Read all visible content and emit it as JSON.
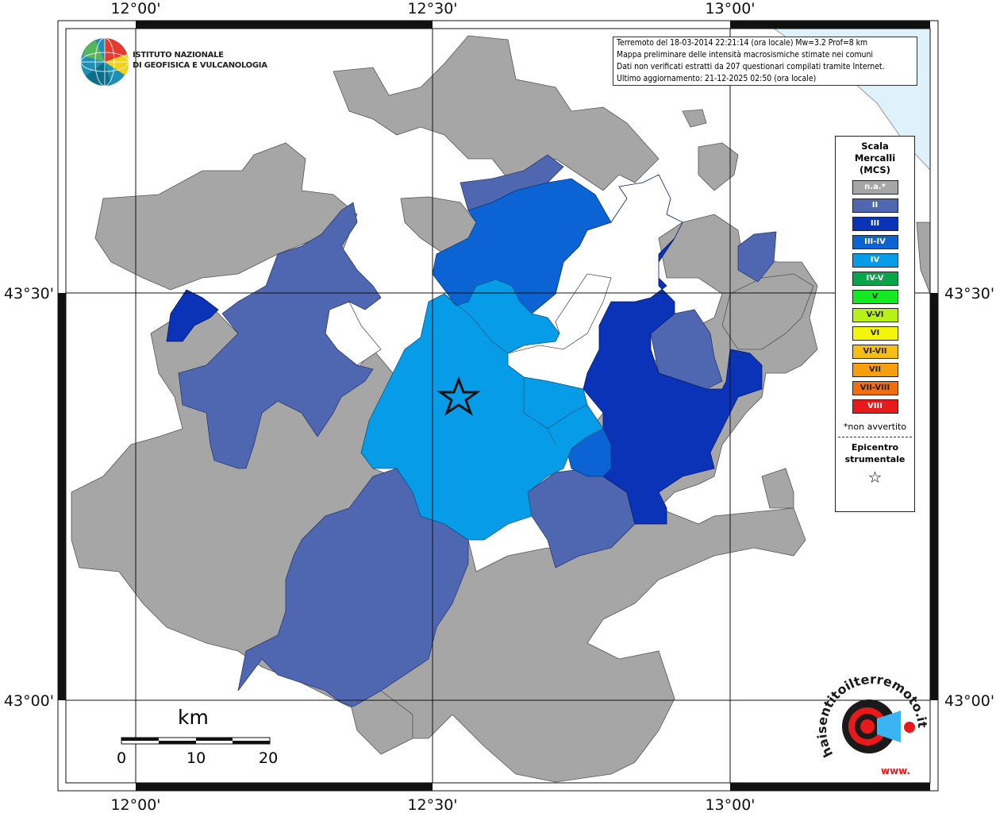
{
  "map": {
    "lon_labels": [
      "12°00'",
      "12°30'",
      "13°00'"
    ],
    "lat_labels": [
      "43°30'",
      "43°00'"
    ]
  },
  "logo": {
    "line1": "ISTITUTO NAZIONALE",
    "line2": "DI GEOFISICA E VULCANOLOGIA"
  },
  "info": {
    "line1": "Terremoto del 18-03-2014 22:21:14 (ora locale) Mw=3.2 Prof=8 km",
    "line2": "Mappa preliminare delle intensità macrosismiche stimate nei comuni",
    "line3": "Dati non verificati estratti da 207 questionari compilati tramite Internet.",
    "line4": "Ultimo aggiornamento: 21-12-2025 02:50 (ora locale)"
  },
  "legend": {
    "title1": "Scala",
    "title2": "Mercalli",
    "title3": "(MCS)",
    "items": [
      {
        "label": "n.a.*",
        "color": "#a6a6a6",
        "text": "#ffffff"
      },
      {
        "label": "II",
        "color": "#4f67b0",
        "text": "#ffffff"
      },
      {
        "label": "III",
        "color": "#0b33b8",
        "text": "#ffffff"
      },
      {
        "label": "III-IV",
        "color": "#0b63d4",
        "text": "#ffffff"
      },
      {
        "label": "IV",
        "color": "#069ce8",
        "text": "#ffffff"
      },
      {
        "label": "IV-V",
        "color": "#08a54b",
        "text": "#ffffff"
      },
      {
        "label": "V",
        "color": "#14ea22",
        "text": "#222222"
      },
      {
        "label": "V-VI",
        "color": "#b6f218",
        "text": "#222222"
      },
      {
        "label": "VI",
        "color": "#f5f50a",
        "text": "#222222"
      },
      {
        "label": "VI-VII",
        "color": "#f6be15",
        "text": "#222222"
      },
      {
        "label": "VII",
        "color": "#f79e0f",
        "text": "#222222"
      },
      {
        "label": "VII-VIII",
        "color": "#f36d0c",
        "text": "#222222"
      },
      {
        "label": "VIII",
        "color": "#e8191a",
        "text": "#ffffff"
      }
    ],
    "note": "*non avvertito",
    "epicentro1": "Epicentro",
    "epicentro2": "strumentale",
    "star": "☆"
  },
  "scalebar": {
    "unit": "km",
    "labels": [
      "0",
      "10",
      "20"
    ]
  },
  "hsit_logo": {
    "text": "haisentitoilterremoto.it",
    "url": "www."
  }
}
